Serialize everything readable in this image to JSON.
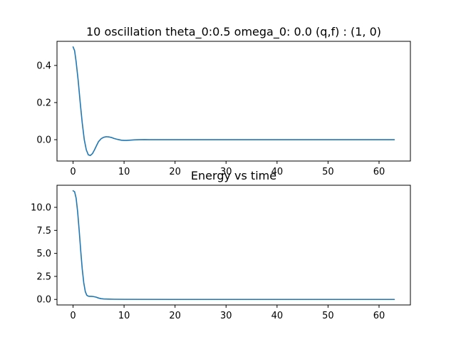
{
  "colors": {
    "series": "#1f77b4",
    "axes": "#000000",
    "background": "#ffffff"
  },
  "chart_data": [
    {
      "type": "line",
      "title": "10 oscillation theta_0:0.5 omega_0: 0.0 (q,f) : (1, 0)",
      "xlabel": "",
      "ylabel": "",
      "xlim": [
        -3.15,
        66.15
      ],
      "ylim": [
        -0.115,
        0.53
      ],
      "grid": false,
      "xticks": [
        0,
        10,
        20,
        30,
        40,
        50,
        60
      ],
      "yticks": [
        0.0,
        0.2,
        0.4
      ],
      "ytick_labels": [
        "0.0",
        "0.2",
        "0.4"
      ],
      "series": [
        {
          "x": [
            0,
            0.3,
            0.6,
            1.0,
            1.4,
            1.8,
            2.2,
            2.6,
            3.0,
            3.4,
            3.8,
            4.2,
            4.6,
            5.0,
            5.5,
            6.0,
            6.5,
            7.0,
            7.5,
            8.0,
            8.5,
            9.0,
            9.5,
            10.0,
            10.5,
            11.0,
            12.0,
            13.0,
            14.0,
            15.0,
            20.0,
            30.0,
            40.0,
            50.0,
            63.0
          ],
          "y": [
            0.5,
            0.48,
            0.42,
            0.32,
            0.2,
            0.09,
            0.0,
            -0.055,
            -0.082,
            -0.085,
            -0.075,
            -0.055,
            -0.032,
            -0.01,
            0.005,
            0.013,
            0.016,
            0.015,
            0.012,
            0.007,
            0.003,
            0.0,
            -0.003,
            -0.004,
            -0.004,
            -0.003,
            -0.001,
            0.0,
            0.0005,
            0.0,
            0.0,
            0.0,
            0.0,
            0.0,
            0.0
          ]
        }
      ]
    },
    {
      "type": "line",
      "title": "Energy vs time",
      "xlabel": "",
      "ylabel": "",
      "xlim": [
        -3.15,
        66.15
      ],
      "ylim": [
        -0.6,
        12.4
      ],
      "grid": false,
      "xticks": [
        0,
        10,
        20,
        30,
        40,
        50,
        60
      ],
      "yticks": [
        0.0,
        2.5,
        5.0,
        7.5,
        10.0
      ],
      "ytick_labels": [
        "0.0",
        "2.5",
        "5.0",
        "7.5",
        "10.0"
      ],
      "series": [
        {
          "x": [
            0,
            0.3,
            0.6,
            0.9,
            1.2,
            1.5,
            1.8,
            2.1,
            2.4,
            2.7,
            3.0,
            3.3,
            3.6,
            4.0,
            4.5,
            5.0,
            5.5,
            6.0,
            6.5,
            7.0,
            8.0,
            10.0,
            20.0,
            30.0,
            40.0,
            50.0,
            63.0
          ],
          "y": [
            11.8,
            11.7,
            11.0,
            9.5,
            7.5,
            5.3,
            3.3,
            1.8,
            0.85,
            0.45,
            0.35,
            0.33,
            0.33,
            0.31,
            0.25,
            0.15,
            0.08,
            0.05,
            0.04,
            0.03,
            0.02,
            0.01,
            0.0,
            0.0,
            0.0,
            0.0,
            0.0
          ]
        }
      ]
    }
  ]
}
